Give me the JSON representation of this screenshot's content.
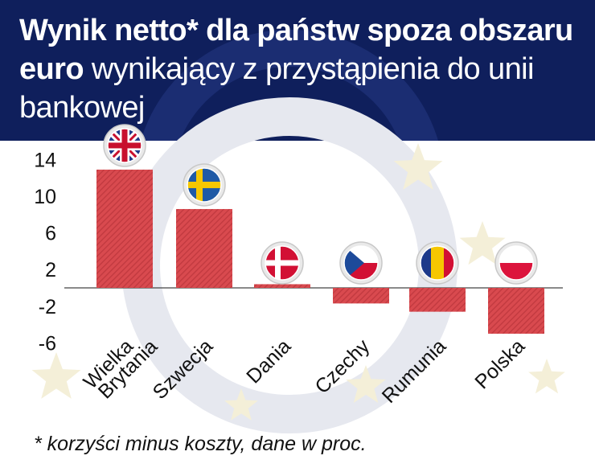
{
  "header": {
    "title_bold": "Wynik netto* dla państw spoza obszaru euro",
    "title_light": "wynikający z przystąpienia do unii bankowej"
  },
  "footnote": "* korzyści minus koszty, dane w proc.",
  "colors": {
    "header_bg": "#0f1f5c",
    "bar": "#d94a4f",
    "bar_stripe": "#c23a40",
    "axis": "#444444"
  },
  "chart_data": {
    "type": "bar",
    "categories": [
      "Wielka Brytania",
      "Szwecja",
      "Dania",
      "Czechy",
      "Rumunia",
      "Polska"
    ],
    "values": [
      12.9,
      8.6,
      0.4,
      -1.7,
      -2.6,
      -5.0
    ],
    "flags": [
      "uk-flag-icon",
      "sweden-flag-icon",
      "denmark-flag-icon",
      "czech-flag-icon",
      "romania-flag-icon",
      "poland-flag-icon"
    ],
    "y_ticks": [
      14,
      10,
      6,
      2,
      -2,
      -6
    ],
    "ylim": [
      -6,
      15
    ],
    "title": "",
    "xlabel": "",
    "ylabel": "",
    "grid": false
  }
}
